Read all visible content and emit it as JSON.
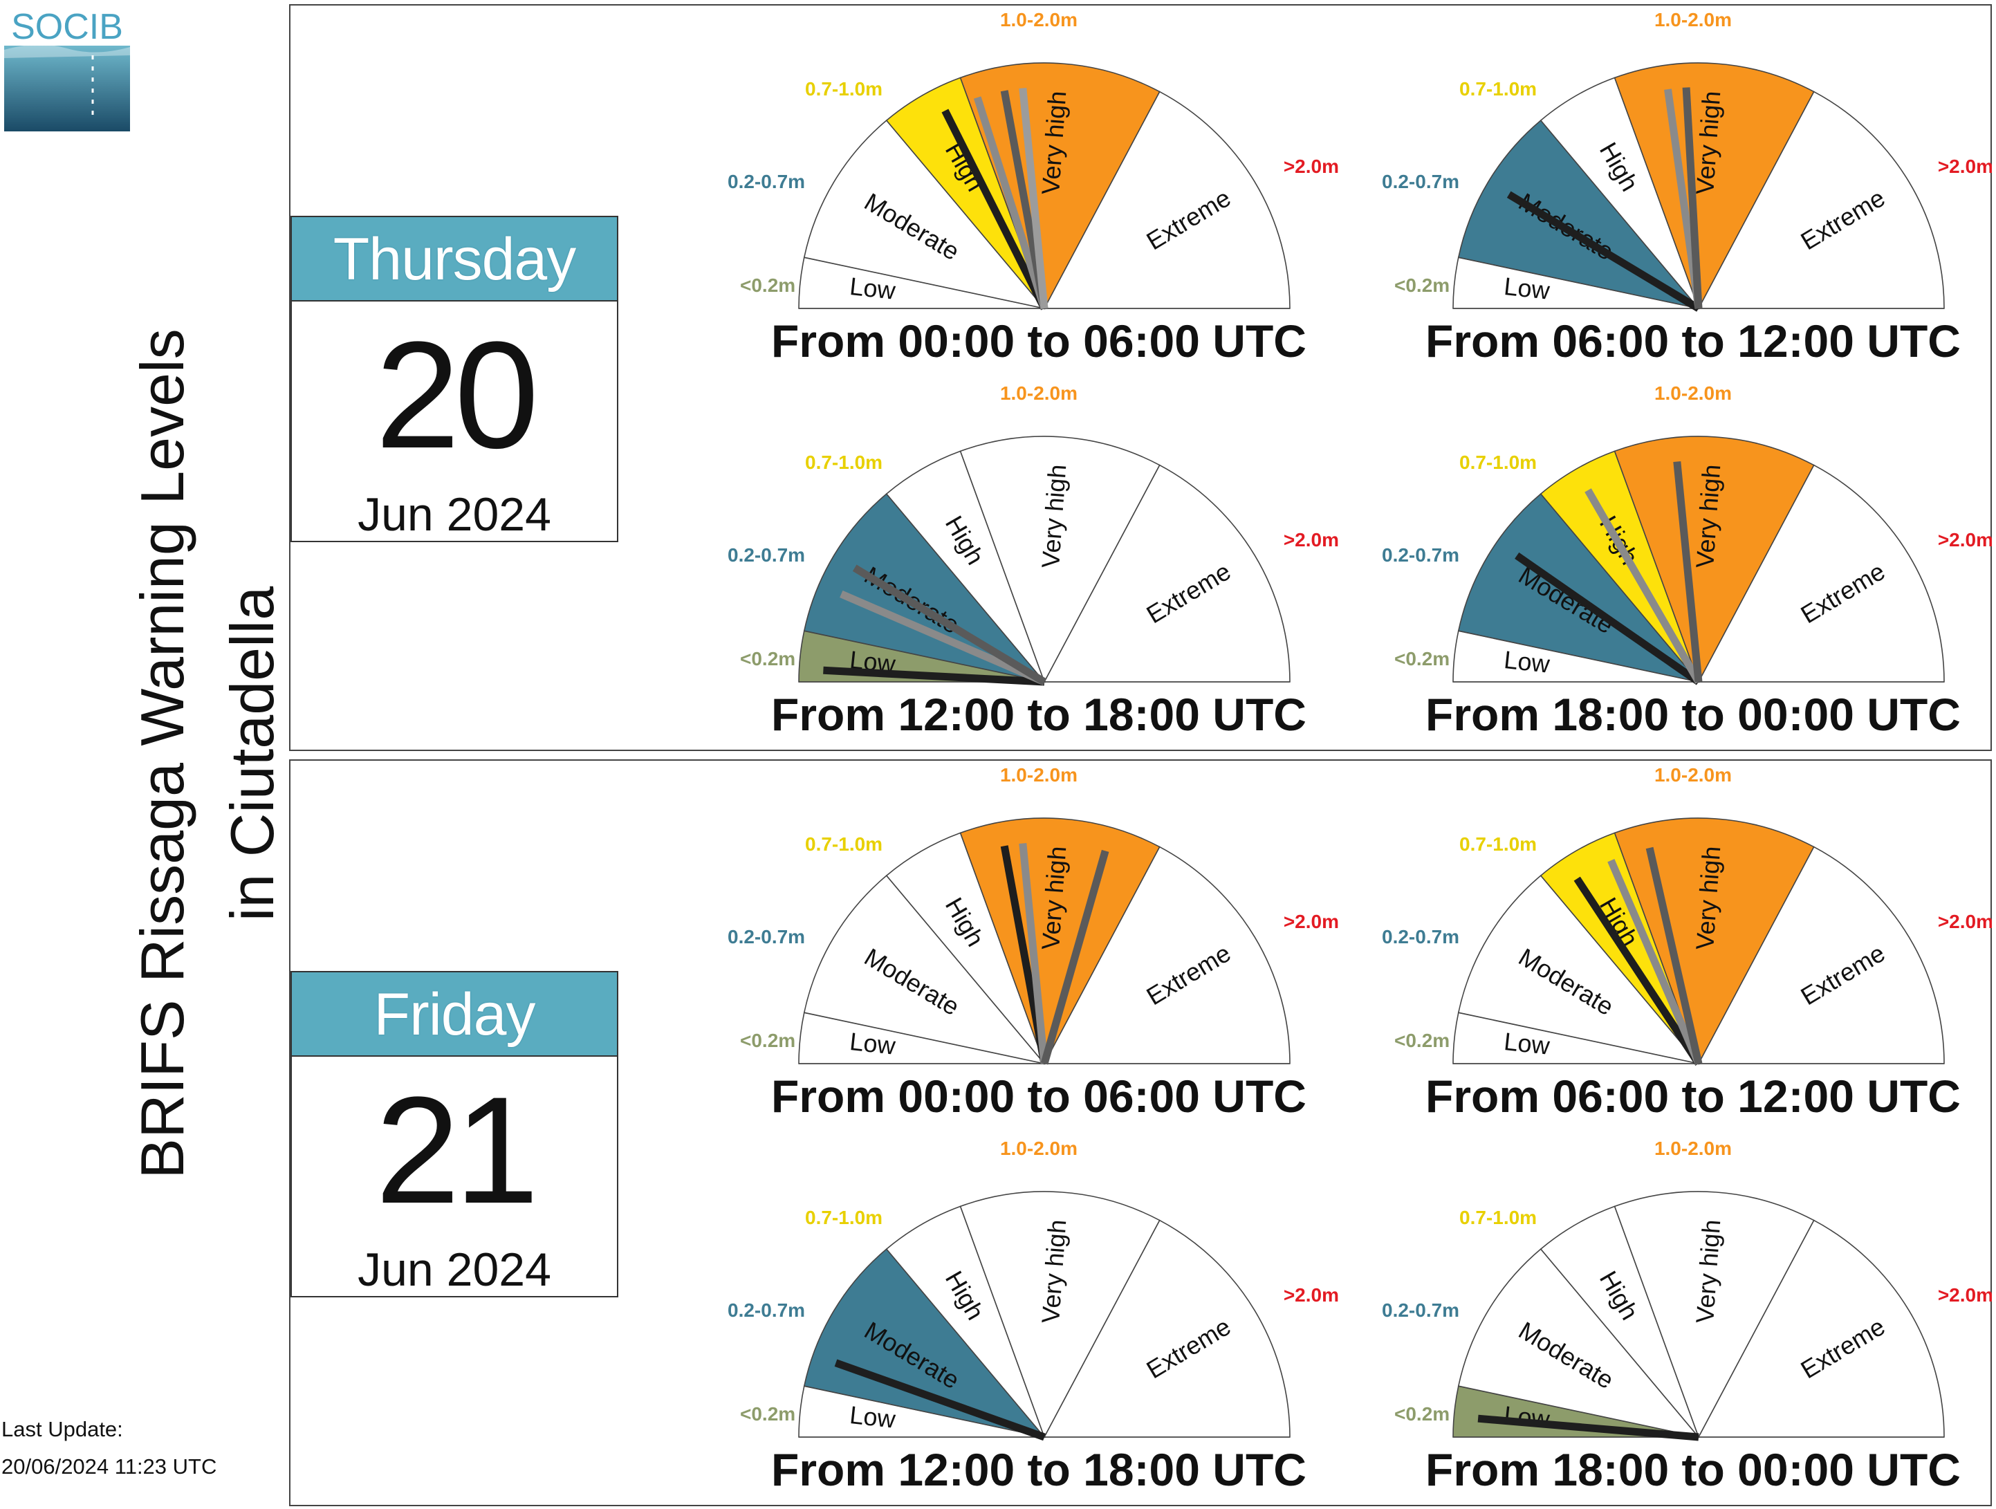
{
  "app": {
    "logo_text": "SOCIB",
    "title_line1": "BRIFS Rissaga Warning Levels",
    "title_line2": "in Ciutadella",
    "last_update_label": "Last Update:",
    "last_update_value": "20/06/2024 11:23 UTC"
  },
  "colors": {
    "low": "#8d9c6b",
    "moderate": "#3e7c93",
    "high": "#fde10b",
    "very_high": "#f7941d",
    "extreme": "#e31b23",
    "calendar_header": "#5aacc0"
  },
  "levels": [
    {
      "name": "Low",
      "range": "<0.2m",
      "range_color": "#8d9c6b"
    },
    {
      "name": "Moderate",
      "range": "0.2-0.7m",
      "range_color": "#3e7c93"
    },
    {
      "name": "High",
      "range": "0.7-1.0m",
      "range_color": "#e8d000"
    },
    {
      "name": "Very high",
      "range": "1.0-2.0m",
      "range_color": "#f7941d"
    },
    {
      "name": "Extreme",
      "range": ">2.0m",
      "range_color": "#e31b23"
    }
  ],
  "days": [
    {
      "weekday": "Thursday",
      "day": "20",
      "month_year": "Jun 2024",
      "gauges": [
        {
          "label": "From 00:00 to 06:00 UTC",
          "highlight": [
            "High",
            "Very high"
          ],
          "needle_values_m": [
            0.9,
            1.05,
            1.2,
            1.3
          ]
        },
        {
          "label": "From 06:00 to 12:00 UTC",
          "highlight": [
            "Moderate",
            "Very high"
          ],
          "needle_values_m": [
            0.45,
            1.25,
            1.35
          ]
        },
        {
          "label": "From 12:00 to 18:00 UTC",
          "highlight": [
            "Low",
            "Moderate"
          ],
          "needle_values_m": [
            0.05,
            0.35,
            0.45
          ]
        },
        {
          "label": "From 18:00 to 00:00 UTC",
          "highlight": [
            "Moderate",
            "High",
            "Very high"
          ],
          "needle_values_m": [
            0.5,
            0.85,
            1.3
          ]
        }
      ]
    },
    {
      "weekday": "Friday",
      "day": "21",
      "month_year": "Jun 2024",
      "gauges": [
        {
          "label": "From 00:00 to 06:00 UTC",
          "highlight": [
            "Very high"
          ],
          "needle_values_m": [
            1.2,
            1.3,
            1.75
          ]
        },
        {
          "label": "From 06:00 to 12:00 UTC",
          "highlight": [
            "High",
            "Very high"
          ],
          "needle_values_m": [
            0.8,
            0.95,
            1.15
          ]
        },
        {
          "label": "From 12:00 to 18:00 UTC",
          "highlight": [
            "Moderate"
          ],
          "needle_values_m": [
            0.3
          ]
        },
        {
          "label": "From 18:00 to 00:00 UTC",
          "highlight": [
            "Low"
          ],
          "needle_values_m": [
            0.08
          ]
        }
      ]
    }
  ]
}
